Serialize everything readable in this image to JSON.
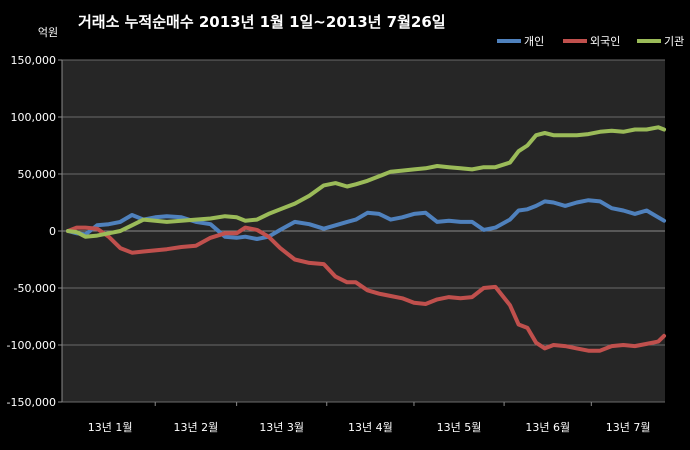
{
  "chart_data": {
    "type": "line",
    "title": "거래소  누적순매수 2013년 1월 1일~2013년 7월26일",
    "ylabel": "억원",
    "xlabel": "",
    "ylim": [
      -150000,
      150000
    ],
    "yticks": [
      150000,
      100000,
      50000,
      0,
      -50000,
      -100000,
      -150000
    ],
    "ytick_labels": [
      "150,000",
      "100,000",
      "50,000",
      "0",
      "-50,000",
      "-100,000",
      "-150,000"
    ],
    "xtick_labels": [
      "13년 1월",
      "13년 2월",
      "13년 3월",
      "13년 4월",
      "13년 5월",
      "13년 6월",
      "13년 7월"
    ],
    "grid": "horizontal",
    "legend": "top-right",
    "x_start": "2013-01-02",
    "x_end": "2013-07-26",
    "x": [
      "2013-01-02",
      "2013-01-05",
      "2013-01-08",
      "2013-01-12",
      "2013-01-16",
      "2013-01-20",
      "2013-01-24",
      "2013-01-28",
      "2013-02-01",
      "2013-02-05",
      "2013-02-10",
      "2013-02-15",
      "2013-02-20",
      "2013-02-25",
      "2013-03-01",
      "2013-03-04",
      "2013-03-08",
      "2013-03-12",
      "2013-03-16",
      "2013-03-21",
      "2013-03-26",
      "2013-03-31",
      "2013-04-04",
      "2013-04-08",
      "2013-04-11",
      "2013-04-15",
      "2013-04-19",
      "2013-04-23",
      "2013-04-27",
      "2013-05-01",
      "2013-05-05",
      "2013-05-09",
      "2013-05-13",
      "2013-05-17",
      "2013-05-21",
      "2013-05-25",
      "2013-05-29",
      "2013-06-03",
      "2013-06-06",
      "2013-06-09",
      "2013-06-12",
      "2013-06-15",
      "2013-06-18",
      "2013-06-22",
      "2013-06-26",
      "2013-06-30",
      "2013-07-04",
      "2013-07-08",
      "2013-07-12",
      "2013-07-16",
      "2013-07-20",
      "2013-07-24",
      "2013-07-26"
    ],
    "series": [
      {
        "name": "개인",
        "color": "#4f81bd",
        "values": [
          0,
          -2000,
          -3000,
          5000,
          6000,
          8000,
          14000,
          10000,
          12000,
          13000,
          12000,
          8000,
          6000,
          -5000,
          -6000,
          -5000,
          -7000,
          -5000,
          1000,
          8000,
          6000,
          2000,
          5000,
          8000,
          10000,
          16000,
          15000,
          10000,
          12000,
          15000,
          16000,
          8000,
          9000,
          8000,
          8000,
          1000,
          3000,
          10000,
          18000,
          19000,
          22000,
          26000,
          25000,
          22000,
          25000,
          27000,
          26000,
          20000,
          18000,
          15000,
          18000,
          12000,
          9000
        ]
      },
      {
        "name": "외국인",
        "color": "#c0504d",
        "values": [
          0,
          3000,
          3000,
          2000,
          -5000,
          -15000,
          -19000,
          -18000,
          -17000,
          -16000,
          -14000,
          -13000,
          -6000,
          -2000,
          -2000,
          3000,
          1000,
          -5000,
          -15000,
          -25000,
          -28000,
          -29000,
          -40000,
          -45000,
          -45000,
          -52000,
          -55000,
          -57000,
          -59000,
          -63000,
          -64000,
          -60000,
          -58000,
          -59000,
          -58000,
          -50000,
          -49000,
          -65000,
          -82000,
          -85000,
          -98000,
          -103000,
          -100000,
          -101000,
          -103000,
          -105000,
          -105000,
          -101000,
          -100000,
          -101000,
          -99000,
          -97000,
          -92000
        ]
      },
      {
        "name": "기관",
        "color": "#9bbb59",
        "values": [
          0,
          -1000,
          -5000,
          -4000,
          -2000,
          0,
          5000,
          10000,
          9000,
          8000,
          9000,
          10000,
          11000,
          13000,
          12000,
          9000,
          10000,
          15000,
          19000,
          24000,
          31000,
          40000,
          42000,
          39000,
          41000,
          44000,
          48000,
          52000,
          53000,
          54000,
          55000,
          57000,
          56000,
          55000,
          54000,
          56000,
          56000,
          60000,
          70000,
          75000,
          84000,
          86000,
          84000,
          84000,
          84000,
          85000,
          87000,
          88000,
          87000,
          89000,
          89000,
          91000,
          89000
        ]
      }
    ]
  },
  "legend": {
    "items": [
      {
        "label": "개인",
        "color": "#4f81bd"
      },
      {
        "label": "외국인",
        "color": "#c0504d"
      },
      {
        "label": "기관",
        "color": "#9bbb59"
      }
    ]
  }
}
